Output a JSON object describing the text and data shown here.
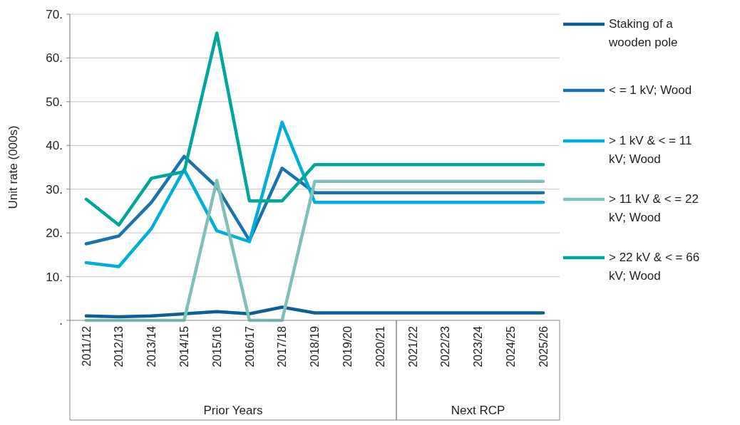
{
  "chart_data": {
    "type": "line",
    "ylabel": "Unit rate (000s)",
    "categories": [
      "2011/12",
      "2012/13",
      "2013/14",
      "2014/15",
      "2015/16",
      "2016/17",
      "2017/18",
      "2018/19",
      "2019/20",
      "2020/21",
      "2021/22",
      "2022/23",
      "2023/24",
      "2024/25",
      "2025/26"
    ],
    "series": [
      {
        "name": "Staking of a wooden pole",
        "color": "#0f5f96",
        "values": [
          1.0,
          0.8,
          1.0,
          1.5,
          2.0,
          1.5,
          3.0,
          1.7,
          1.7,
          1.7,
          1.7,
          1.7,
          1.7,
          1.7,
          1.7
        ]
      },
      {
        "name": "< = 1 kV; Wood",
        "color": "#1a73ab",
        "values": [
          17.5,
          19.3,
          27,
          37.5,
          30.5,
          18.3,
          34.8,
          29.2,
          29.2,
          29.2,
          29.2,
          29.2,
          29.2,
          29.2,
          29.2
        ]
      },
      {
        "name": "> 1 kV & < = 11 kV; Wood",
        "color": "#00afd9",
        "values": [
          13.2,
          12.3,
          21,
          34.5,
          20.5,
          18,
          45.3,
          27,
          27,
          27,
          27,
          27,
          27,
          27,
          27
        ]
      },
      {
        "name": "> 11 kV & < = 22 kV; Wood",
        "color": "#7fc0b9",
        "values": [
          0,
          0,
          0,
          0,
          32,
          0,
          0,
          31.8,
          31.8,
          31.8,
          31.8,
          31.8,
          31.8,
          31.8,
          31.8
        ]
      },
      {
        "name": "> 22 kV & < = 66 kV; Wood",
        "color": "#00a69a",
        "values": [
          27.7,
          21.8,
          32.5,
          34,
          65.7,
          27.3,
          27.3,
          35.6,
          35.6,
          35.6,
          35.6,
          35.6,
          35.6,
          35.6,
          35.6
        ]
      }
    ],
    "ylim": [
      0,
      70
    ],
    "yticks": [
      {
        "value": 0,
        "label": "."
      },
      {
        "value": 10,
        "label": "10."
      },
      {
        "value": 20,
        "label": "20."
      },
      {
        "value": 30,
        "label": "30."
      },
      {
        "value": 40,
        "label": "40."
      },
      {
        "value": 50,
        "label": "50."
      },
      {
        "value": 60,
        "label": "60."
      },
      {
        "value": 70,
        "label": "70."
      }
    ],
    "grid": "y",
    "legend": "right",
    "marker": "none",
    "line_style": "solid",
    "annotations": [
      "Prior Years",
      "Next RCP"
    ]
  }
}
